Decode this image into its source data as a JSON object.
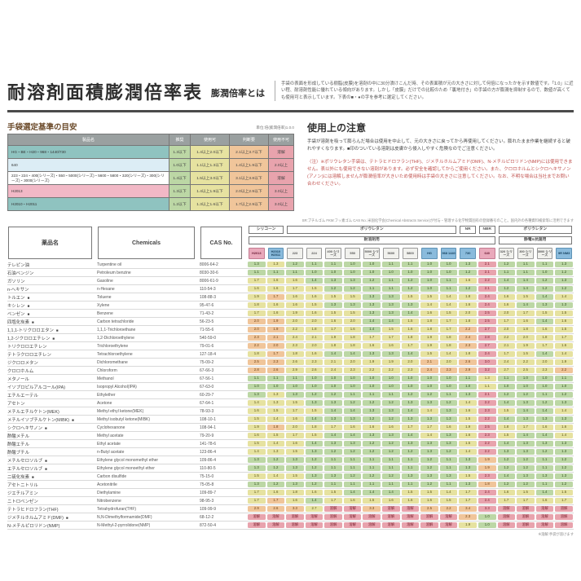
{
  "page": {
    "title": "耐溶剤面積膨潤倍率表",
    "subtitle": "膨潤倍率とは",
    "intro": "手袋の表面を形成している樹脂(皮膜)を溶剤の中に30分漬けこんだ時、その表面積が元の大きさに対して何倍になったかを示す数値です。「1.0」に近い程、耐溶剤性能に優れている傾向があります。しかし「皮膜」だけでの比較のため「裏地付き」の手袋の方が膨潤を抑制するので、数値が高くても使用可と表示しています。下表の■・●の字を参考に選定してください。",
    "unit_note": "単位:倍(膨潤倍率)1.0.0",
    "footnote": "※溶解:手袋が溶けます"
  },
  "legend": {
    "heading": "手袋選定基準の目安",
    "columns": [
      "製品名",
      "推奨",
      "使用可",
      "判断要",
      "使用不可"
    ],
    "rows": [
      {
        "name": "HG・BE・H20・968・1440/730",
        "color": "teal",
        "values": [
          "1.3以下",
          "1.4以上2.0以下",
          "2.1以上3.7以下",
          "溶解"
        ]
      },
      {
        "name": "640",
        "color": "lightblue",
        "values": [
          "1.0以下",
          "1.1以上1.3以下",
          "1.4以上1.9以下",
          "2.0以上"
        ]
      },
      {
        "name": "223・224・400(シリーズ)・550・5000(シリーズ)・5600・5800・320(シリーズ)・300(シリーズ)・3000(シリーズ)",
        "color": "white",
        "values": [
          "1.4以下",
          "1.5以上3.0以下",
          "3.1以上3.8以下",
          "溶解"
        ]
      },
      {
        "name": "H2013",
        "color": "pink",
        "values": [
          "1.3以下",
          "1.4以上1.9以下",
          "2.0以上2.9以下",
          "3.0以上"
        ]
      },
      {
        "name": "H2010・H2011",
        "color": "teal",
        "values": [
          "1.2以下",
          "1.3以上1.6以下",
          "1.7以上2.9以下",
          "3.0以上"
        ]
      }
    ]
  },
  "precautions": {
    "heading": "使用上の注意",
    "text1": "手袋が溶剤を吸って膨らんだ場合は使用を中止して、元の大きさに戻ってから再使用してください。膨れたまま作業を継続すると破れやすくなります。■印のついている溶剤は皮膚から侵入しやすく危険なのでご注意ください。",
    "text2": "〈注〉※ポリウレタン手袋は、テトラヒドロフラン(THF)、ジメチルホルムアミド(DMF)、N-メチルピロリドン(NMP)には使用できません。表以外にも使用できない溶剤があります。必ず安全を確認してからご使用ください。また、クロロホルムとシクロヘキサノン(アノン)には溶解しませんが膨潤倍率が大きいため使用時は手袋の大きさに注意してください。なお、不明な場合は当社までお問い合わせください。"
  },
  "table_note": "SR:ブチルゴム FKM:フッ素ゴム CAS No.:米国化学会(Chemical Abstracts Service)が付与・管理する化学物質固有の登録番号のこと。国内外の各種資料検索等に活用できます",
  "main_table": {
    "text_columns": [
      "薬品名",
      "Chemicals",
      "CAS No."
    ],
    "groups": [
      {
        "label": "シリコーン",
        "span": 2
      },
      {
        "label": "ポリウレタン",
        "span": 9
      },
      {
        "label": "NR",
        "span": 1
      },
      {
        "label": "NBR",
        "span": 1
      },
      {
        "label": "ポリウレタン",
        "span": 4
      }
    ],
    "subgroups": [
      {
        "label": "耐溶剤用",
        "span": 13
      },
      {
        "label": "静電&抗菌用",
        "span": 4
      }
    ],
    "products": [
      {
        "label": "H2013",
        "color": "pink"
      },
      {
        "label": "H2010 H2011",
        "color": "blue"
      },
      {
        "label": "223",
        "color": "gray"
      },
      {
        "label": "224",
        "color": "gray"
      },
      {
        "label": "400 シリーズ",
        "color": "gray"
      },
      {
        "label": "550",
        "color": "gray"
      },
      {
        "label": "5000 シリーズ",
        "color": "gray"
      },
      {
        "label": "5600",
        "color": "gray"
      },
      {
        "label": "5800",
        "color": "gray"
      },
      {
        "label": "HG",
        "color": "blue"
      },
      {
        "label": "968 1440",
        "color": "blue"
      },
      {
        "label": "730",
        "color": "blue"
      },
      {
        "label": "640",
        "color": "pink"
      },
      {
        "label": "320 シリーズ",
        "color": "gray"
      },
      {
        "label": "300 シリーズ",
        "color": "gray"
      },
      {
        "label": "3000 シリーズ",
        "color": "gray"
      },
      {
        "label": "9R NM3",
        "color": "blue"
      }
    ],
    "col_types": [
      "h2013",
      "h2010",
      "pu",
      "pu",
      "pu",
      "pu",
      "pu",
      "pu",
      "pu",
      "blue",
      "blue",
      "blue",
      "n640",
      "pu",
      "pu",
      "pu",
      "blue"
    ],
    "thresholds": {
      "h2013": [
        1.3,
        1.9,
        2.9
      ],
      "h2010": [
        1.2,
        1.6,
        2.9
      ],
      "pu": [
        1.4,
        3.0,
        3.8
      ],
      "blue": [
        1.3,
        2.0,
        3.7
      ],
      "n640": [
        1.0,
        1.3,
        1.9
      ]
    },
    "rows": [
      {
        "name": "テレピン油",
        "mark": false,
        "chem": "Turpentine oil",
        "cas": "8006-64-2",
        "values": [
          "1.3",
          "1.3",
          "1.2",
          "1.1",
          "1.1",
          "1.0",
          "1.0",
          "1.1",
          "1.1",
          "1.0",
          "1.0",
          "1.3",
          "2.1",
          "1.2",
          "1.1",
          "1.1",
          "1.3"
        ]
      },
      {
        "name": "石油ベンジン",
        "mark": false,
        "chem": "Petroleum benzine",
        "cas": "8030-30-6",
        "values": [
          "1.1",
          "1.1",
          "1.1",
          "1.0",
          "1.0",
          "1.0",
          "1.0",
          "1.0",
          "1.0",
          "1.0",
          "1.0",
          "1.2",
          "2.1",
          "1.1",
          "1.1",
          "1.0",
          "1.2"
        ]
      },
      {
        "name": "ガソリン",
        "mark": false,
        "chem": "Gasoline",
        "cas": "8006-61-9",
        "values": [
          "1.7",
          "1.6",
          "1.6",
          "1.4",
          "1.3",
          "1.3",
          "1.2",
          "1.1",
          "1.2",
          "1.0",
          "1.1",
          "1.6",
          "2.2",
          "1.4",
          "1.4",
          "1.2",
          "1.3"
        ]
      },
      {
        "name": "n-ヘキサン",
        "mark": false,
        "chem": "n-Hexane",
        "cas": "110-54-3",
        "values": [
          "1.6",
          "1.6",
          "1.7",
          "1.5",
          "1.2",
          "1.2",
          "1.1",
          "1.1",
          "1.2",
          "1.0",
          "1.1",
          "1.2",
          "2.1",
          "1.2",
          "1.4",
          "1.2",
          "1.2"
        ]
      },
      {
        "name": "トルエン",
        "mark": true,
        "chem": "Toluene",
        "cas": "108-88-3",
        "values": [
          "1.9",
          "1.7",
          "1.6",
          "1.6",
          "1.5",
          "1.5",
          "1.3",
          "1.3",
          "1.5",
          "1.5",
          "1.4",
          "1.8",
          "2.4",
          "1.6",
          "1.5",
          "1.4",
          "1.4"
        ]
      },
      {
        "name": "キシレン",
        "mark": true,
        "chem": "Xylene",
        "cas": "95-47-6",
        "values": [
          "1.8",
          "1.6",
          "1.6",
          "1.5",
          "1.3",
          "1.3",
          "1.3",
          "1.3",
          "1.3",
          "1.4",
          "1.4",
          "1.6",
          "2.4",
          "1.6",
          "1.4",
          "1.3",
          "1.3"
        ]
      },
      {
        "name": "ベンゼン",
        "mark": true,
        "chem": "Benzene",
        "cas": "71-43-2",
        "values": [
          "1.7",
          "1.6",
          "1.9",
          "1.6",
          "1.5",
          "1.5",
          "1.3",
          "1.3",
          "1.4",
          "1.6",
          "1.5",
          "2.0",
          "2.5",
          "2.0",
          "1.7",
          "1.5",
          "1.5"
        ]
      },
      {
        "name": "四塩化炭素",
        "mark": true,
        "chem": "Carbon tetrachloride",
        "cas": "56-23-5",
        "values": [
          "2.0",
          "1.9",
          "2.0",
          "2.0",
          "1.6",
          "2.0",
          "1.4",
          "1.4",
          "1.5",
          "1.8",
          "1.7",
          "1.8",
          "2.5",
          "1.7",
          "1.6",
          "1.4",
          "1.6"
        ]
      },
      {
        "name": "1,1,1-トリクロロエタン",
        "mark": true,
        "chem": "1,1,1-Trichloroethane",
        "cas": "71-55-6",
        "values": [
          "2.0",
          "1.9",
          "2.2",
          "1.8",
          "1.7",
          "1.6",
          "1.4",
          "1.5",
          "1.6",
          "1.8",
          "1.7",
          "2.2",
          "2.7",
          "2.0",
          "1.8",
          "1.6",
          "1.5"
        ]
      },
      {
        "name": "1,2-ジクロロエチレン",
        "mark": true,
        "chem": "1,2-Dichloroethylene",
        "cas": "540-59-0",
        "values": [
          "2.3",
          "2.1",
          "2.4",
          "2.1",
          "1.9",
          "1.8",
          "1.7",
          "1.7",
          "1.8",
          "1.9",
          "1.8",
          "2.4",
          "2.8",
          "2.2",
          "2.0",
          "1.8",
          "1.7"
        ]
      },
      {
        "name": "トリクロロエチレン",
        "mark": false,
        "chem": "Trichloroethylene",
        "cas": "79-01-6",
        "values": [
          "2.2",
          "2.0",
          "2.3",
          "2.0",
          "1.8",
          "1.8",
          "1.6",
          "1.6",
          "1.7",
          "1.9",
          "1.8",
          "2.3",
          "2.7",
          "2.1",
          "1.9",
          "1.7",
          "1.6"
        ]
      },
      {
        "name": "テトラクロロエチレン",
        "mark": false,
        "chem": "Tetrachloroethylene",
        "cas": "127-18-4",
        "values": [
          "1.8",
          "1.7",
          "1.8",
          "1.6",
          "1.4",
          "1.4",
          "1.3",
          "1.3",
          "1.4",
          "1.5",
          "1.4",
          "1.8",
          "2.4",
          "1.7",
          "1.5",
          "1.4",
          "1.4"
        ]
      },
      {
        "name": "ジクロロメタン",
        "mark": false,
        "chem": "Dichloromethane",
        "cas": "75-09-2",
        "values": [
          "2.5",
          "2.3",
          "2.6",
          "2.3",
          "2.1",
          "2.0",
          "1.9",
          "1.9",
          "2.0",
          "2.1",
          "2.0",
          "2.6",
          "3.0",
          "2.4",
          "2.2",
          "2.0",
          "1.9"
        ]
      },
      {
        "name": "クロロホルム",
        "mark": false,
        "chem": "Chloroform",
        "cas": "67-66-3",
        "values": [
          "2.8",
          "2.6",
          "2.9",
          "2.6",
          "2.4",
          "2.3",
          "2.2",
          "2.2",
          "2.3",
          "2.4",
          "2.3",
          "2.9",
          "3.2",
          "2.7",
          "2.5",
          "2.3",
          "2.2"
        ]
      },
      {
        "name": "メタノール",
        "mark": false,
        "chem": "Methanol",
        "cas": "67-56-1",
        "values": [
          "1.1",
          "1.1",
          "1.1",
          "1.0",
          "1.0",
          "1.0",
          "1.0",
          "1.0",
          "1.0",
          "1.0",
          "1.0",
          "1.1",
          "1.3",
          "1.1",
          "1.0",
          "1.0",
          "1.1"
        ]
      },
      {
        "name": "イソプロピルアルコール(IPA)",
        "mark": false,
        "chem": "Isopropyl Alcohol(IPA)",
        "cas": "67-63-0",
        "values": [
          "1.0",
          "1.0",
          "1.0",
          "1.0",
          "1.0",
          "1.0",
          "1.0",
          "1.0",
          "1.0",
          "1.0",
          "1.0",
          "1.0",
          "1.1",
          "1.0",
          "1.0",
          "1.0",
          "1.0"
        ]
      },
      {
        "name": "エチルエーテル",
        "mark": false,
        "chem": "Ethylether",
        "cas": "60-29-7",
        "values": [
          "1.3",
          "1.3",
          "1.3",
          "1.2",
          "1.2",
          "1.1",
          "1.1",
          "1.1",
          "1.2",
          "1.2",
          "1.1",
          "1.3",
          "2.1",
          "1.2",
          "1.2",
          "1.1",
          "1.2"
        ]
      },
      {
        "name": "アセトン",
        "mark": false,
        "chem": "Acetone",
        "cas": "67-64-1",
        "values": [
          "1.4",
          "1.3",
          "1.5",
          "1.3",
          "1.3",
          "1.2",
          "1.2",
          "1.2",
          "1.3",
          "1.3",
          "1.2",
          "1.4",
          "2.2",
          "1.4",
          "1.3",
          "1.2",
          "1.3"
        ]
      },
      {
        "name": "メチルエチルケトン(MEK)",
        "mark": false,
        "chem": "Methyl ethyl ketone(MEK)",
        "cas": "78-93-3",
        "values": [
          "1.6",
          "1.5",
          "1.7",
          "1.5",
          "1.4",
          "1.4",
          "1.3",
          "1.3",
          "1.4",
          "1.4",
          "1.3",
          "1.6",
          "2.3",
          "1.5",
          "1.4",
          "1.4",
          "1.4"
        ]
      },
      {
        "name": "メチルイソブチルケトン(MIBK)",
        "mark": true,
        "chem": "Methyl isobutyl ketone(MIBK)",
        "cas": "108-10-1",
        "values": [
          "1.5",
          "1.4",
          "1.6",
          "1.4",
          "1.3",
          "1.3",
          "1.2",
          "1.2",
          "1.3",
          "1.3",
          "1.3",
          "1.5",
          "2.2",
          "1.4",
          "1.3",
          "1.3",
          "1.3"
        ]
      },
      {
        "name": "シクロヘキサノン",
        "mark": true,
        "chem": "Cyclohexanone",
        "cas": "108-94-1",
        "values": [
          "1.9",
          "1.8",
          "2.0",
          "1.8",
          "1.7",
          "1.6",
          "1.6",
          "1.6",
          "1.7",
          "1.7",
          "1.6",
          "1.9",
          "2.5",
          "1.8",
          "1.7",
          "1.6",
          "1.6"
        ]
      },
      {
        "name": "酢酸メチル",
        "mark": false,
        "chem": "Methyl acetate",
        "cas": "79-20-9",
        "values": [
          "1.6",
          "1.5",
          "1.7",
          "1.5",
          "1.4",
          "1.4",
          "1.3",
          "1.3",
          "1.4",
          "1.4",
          "1.3",
          "1.6",
          "2.3",
          "1.5",
          "1.4",
          "1.4",
          "1.4"
        ]
      },
      {
        "name": "酢酸エチル",
        "mark": false,
        "chem": "Ethyl acetate",
        "cas": "141-78-6",
        "values": [
          "1.5",
          "1.4",
          "1.6",
          "1.4",
          "1.3",
          "1.3",
          "1.2",
          "1.2",
          "1.3",
          "1.3",
          "1.3",
          "1.5",
          "2.2",
          "1.4",
          "1.3",
          "1.3",
          "1.3"
        ]
      },
      {
        "name": "酢酸ブチル",
        "mark": false,
        "chem": "n-Butyl acetate",
        "cas": "123-86-4",
        "values": [
          "1.4",
          "1.3",
          "1.5",
          "1.3",
          "1.2",
          "1.2",
          "1.2",
          "1.2",
          "1.2",
          "1.3",
          "1.2",
          "1.4",
          "2.2",
          "1.3",
          "1.3",
          "1.2",
          "1.3"
        ]
      },
      {
        "name": "メチルセロソルブ",
        "mark": true,
        "chem": "Ethylene glycol monomethyl ether",
        "cas": "109-86-4",
        "values": [
          "1.3",
          "1.2",
          "1.3",
          "1.2",
          "1.1",
          "1.1",
          "1.1",
          "1.1",
          "1.1",
          "1.2",
          "1.1",
          "1.3",
          "1.9",
          "1.2",
          "1.2",
          "1.1",
          "1.2"
        ]
      },
      {
        "name": "エチルセロソルブ",
        "mark": true,
        "chem": "Ethylene glycol monoethyl ether",
        "cas": "110-80-5",
        "values": [
          "1.3",
          "1.2",
          "1.3",
          "1.2",
          "1.1",
          "1.1",
          "1.1",
          "1.1",
          "1.1",
          "1.2",
          "1.1",
          "1.3",
          "1.9",
          "1.2",
          "1.2",
          "1.1",
          "1.2"
        ]
      },
      {
        "name": "二硫化炭素",
        "mark": true,
        "chem": "Carbon disulfide",
        "cas": "75-15-0",
        "values": [
          "1.5",
          "1.4",
          "1.5",
          "1.3",
          "1.3",
          "1.2",
          "1.2",
          "1.2",
          "1.3",
          "1.3",
          "1.3",
          "1.5",
          "2.3",
          "1.4",
          "1.3",
          "1.3",
          "1.3"
        ]
      },
      {
        "name": "アセトニトリル",
        "mark": false,
        "chem": "Acetonitrile",
        "cas": "75-05-8",
        "values": [
          "1.3",
          "1.2",
          "1.3",
          "1.2",
          "1.1",
          "1.1",
          "1.1",
          "1.1",
          "1.1",
          "1.2",
          "1.1",
          "1.3",
          "1.8",
          "1.2",
          "1.2",
          "1.1",
          "1.2"
        ]
      },
      {
        "name": "ジエチルアミン",
        "mark": false,
        "chem": "Diethylamine",
        "cas": "109-89-7",
        "values": [
          "1.7",
          "1.6",
          "1.8",
          "1.6",
          "1.5",
          "1.4",
          "1.4",
          "1.4",
          "1.5",
          "1.5",
          "1.4",
          "1.7",
          "2.4",
          "1.6",
          "1.5",
          "1.4",
          "1.5"
        ]
      },
      {
        "name": "ニトロベンゼン",
        "mark": false,
        "chem": "Nitrobenzene",
        "cas": "98-95-3",
        "values": [
          "1.7",
          "1.7",
          "1.6",
          "1.4",
          "1.7",
          "1.6",
          "1.5",
          "1.6",
          "1.6",
          "1.6",
          "1.5",
          "1.7",
          "2.4",
          "1.7",
          "1.7",
          "1.6",
          "1.7"
        ]
      },
      {
        "name": "テトラヒドロフラン(THF)",
        "mark": false,
        "chem": "Tetrahydrofuran(THF)",
        "cas": "109-99-9",
        "values": [
          "2.9",
          "2.6",
          "3.3",
          "2.7",
          "溶解",
          "溶解",
          "3.3",
          "溶解",
          "溶解",
          "2.5",
          "2.2",
          "3.4",
          "3.3",
          "溶解",
          "溶解",
          "溶解",
          "溶解"
        ]
      },
      {
        "name": "ジメチルホルムアミド(DMF)",
        "mark": true,
        "chem": "N,N-Dimethylformamide(DMF)",
        "cas": "68-12-2",
        "values": [
          "溶解",
          "溶解",
          "溶解",
          "溶解",
          "溶解",
          "溶解",
          "溶解",
          "溶解",
          "溶解",
          "溶解",
          "溶解",
          "2.3",
          "1.0",
          "溶解",
          "溶解",
          "溶解",
          "溶解"
        ]
      },
      {
        "name": "N-メチルピロリドン(NMP)",
        "mark": false,
        "chem": "N-Methyl-2-pyrrolidone(NMP)",
        "cas": "872-50-4",
        "values": [
          "溶解",
          "溶解",
          "溶解",
          "溶解",
          "溶解",
          "溶解",
          "溶解",
          "溶解",
          "溶解",
          "溶解",
          "溶解",
          "1.9",
          "1.0",
          "溶解",
          "溶解",
          "溶解",
          "溶解"
        ]
      }
    ]
  },
  "colors": {
    "recommended": "#bcd7a5",
    "usable": "#e6e2a0",
    "judgement": "#f0c59a",
    "not_usable": "#e8a3ad",
    "header_blue": "#8abbdc",
    "header_pink": "#e9a9bb",
    "legend_teal": "#8fc3c0"
  }
}
